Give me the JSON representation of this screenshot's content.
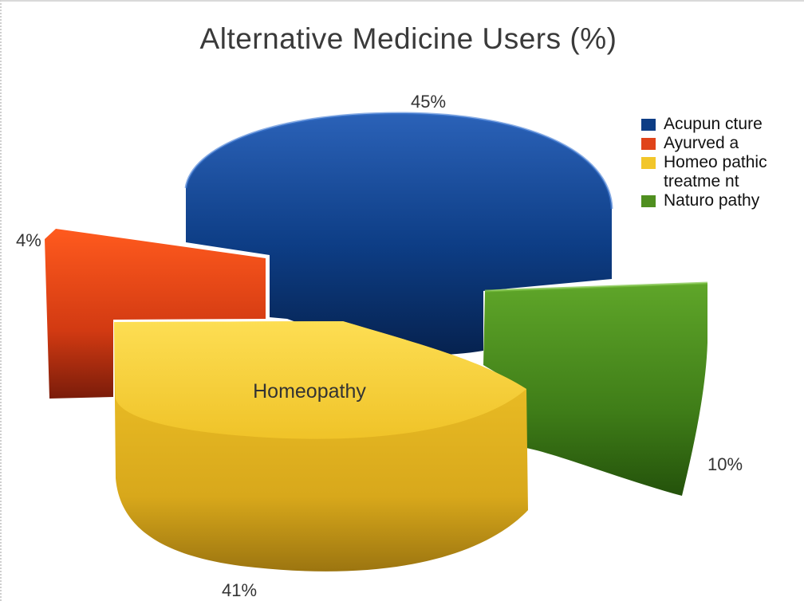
{
  "chart_data": {
    "type": "pie",
    "title": "Alternative Medicine Users (%)",
    "categories": [
      "Acupuncture",
      "Ayurveda",
      "Homeopathic treatment",
      "Naturopathy"
    ],
    "values": [
      45,
      4,
      41,
      10
    ],
    "data_labels": [
      "45%",
      "4%",
      "41%",
      "10%"
    ],
    "annotation": "Homeopathy",
    "legend_labels": [
      "Acupun cture",
      "Ayurved a",
      "Homeo pathic treatme nt",
      "Naturo pathy"
    ],
    "colors": [
      "#0d3d85",
      "#e0441a",
      "#f2c62a",
      "#4f8f1f"
    ],
    "legend_position": "right",
    "style": "3d-exploded"
  }
}
